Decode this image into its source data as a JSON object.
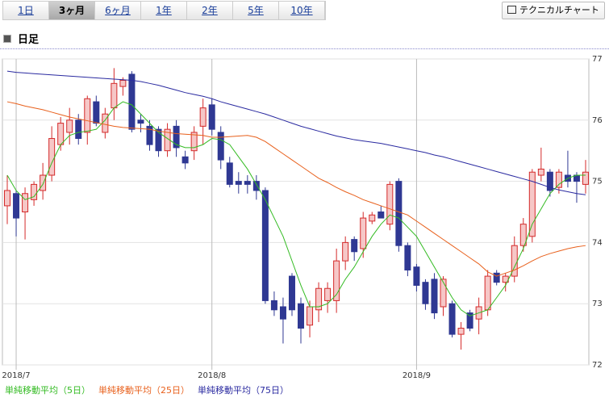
{
  "tabs": [
    "1日",
    "3ヶ月",
    "6ヶ月",
    "1年",
    "2年",
    "5年",
    "10年"
  ],
  "active_tab": 1,
  "button": "テクニカルチャート",
  "section_title": "日足",
  "chart_data": {
    "type": "candlestick",
    "categories": [
      null,
      "2018/7",
      null,
      null,
      null,
      null,
      null,
      null,
      null,
      null,
      null,
      null,
      null,
      null,
      null,
      null,
      null,
      null,
      null,
      null,
      null,
      null,
      null,
      "2018/8",
      null,
      null,
      null,
      null,
      null,
      null,
      null,
      null,
      null,
      null,
      null,
      null,
      null,
      null,
      null,
      null,
      null,
      null,
      null,
      null,
      null,
      null,
      "2018/9",
      null,
      null,
      null,
      null,
      null,
      null,
      null,
      null,
      null,
      null,
      null,
      null,
      null,
      null,
      null,
      null,
      null,
      null,
      null
    ],
    "open": [
      74.6,
      74.8,
      74.5,
      74.7,
      74.85,
      75.1,
      75.6,
      75.8,
      76.0,
      75.8,
      76.3,
      75.8,
      76.2,
      76.55,
      76.75,
      76.0,
      75.9,
      75.85,
      75.5,
      75.9,
      75.4,
      75.5,
      75.9,
      76.25,
      75.8,
      75.3,
      75.0,
      75.0,
      75.0,
      74.85,
      73.05,
      72.95,
      73.45,
      73.0,
      72.65,
      72.9,
      73.05,
      73.05,
      73.7,
      74.05,
      73.9,
      74.35,
      74.5,
      74.3,
      75.0,
      73.95,
      73.6,
      73.35,
      73.4,
      72.95,
      73.0,
      72.5,
      72.85,
      72.75,
      72.9,
      73.5,
      73.35,
      73.45,
      73.95,
      74.1,
      75.1,
      75.15,
      74.9,
      75.1,
      75.1,
      74.95
    ],
    "high": [
      75.1,
      74.85,
      74.9,
      75.0,
      75.3,
      75.9,
      76.05,
      76.2,
      76.1,
      76.4,
      76.4,
      76.2,
      76.85,
      76.7,
      76.8,
      76.1,
      76.0,
      75.9,
      75.95,
      76.0,
      75.5,
      75.9,
      76.35,
      76.35,
      75.9,
      75.4,
      75.15,
      75.1,
      75.1,
      74.9,
      73.2,
      73.1,
      73.5,
      73.1,
      73.05,
      73.35,
      73.35,
      73.9,
      74.1,
      74.1,
      74.5,
      74.5,
      74.6,
      75.0,
      75.05,
      74.0,
      73.65,
      73.4,
      73.5,
      73.45,
      73.05,
      72.7,
      72.9,
      73.1,
      73.55,
      73.55,
      73.5,
      74.1,
      74.4,
      75.2,
      75.55,
      75.2,
      75.2,
      75.5,
      75.15,
      75.35
    ],
    "low": [
      74.3,
      74.1,
      74.05,
      74.6,
      74.7,
      75.0,
      75.5,
      75.6,
      75.6,
      75.6,
      75.9,
      75.7,
      76.0,
      76.4,
      75.8,
      75.8,
      75.5,
      75.4,
      75.4,
      75.4,
      75.2,
      75.35,
      75.6,
      75.75,
      75.2,
      74.9,
      74.8,
      74.8,
      74.7,
      73.0,
      72.8,
      72.35,
      72.8,
      72.35,
      72.45,
      72.7,
      72.85,
      72.85,
      73.55,
      73.7,
      73.75,
      74.3,
      74.4,
      74.2,
      73.85,
      73.45,
      73.2,
      72.9,
      72.75,
      72.8,
      72.45,
      72.25,
      72.55,
      72.5,
      72.8,
      73.3,
      73.2,
      73.35,
      73.85,
      74.0,
      75.0,
      74.75,
      74.8,
      74.9,
      74.65,
      74.8
    ],
    "close": [
      74.85,
      74.4,
      74.8,
      74.95,
      75.1,
      75.7,
      75.95,
      76.0,
      75.7,
      76.35,
      75.95,
      76.1,
      76.6,
      76.65,
      75.85,
      75.95,
      75.6,
      75.5,
      75.85,
      75.55,
      75.3,
      75.8,
      76.2,
      75.85,
      75.35,
      74.95,
      74.95,
      74.95,
      74.85,
      73.05,
      72.9,
      72.75,
      72.9,
      72.6,
      72.95,
      73.25,
      73.25,
      73.7,
      74.0,
      73.85,
      74.4,
      74.45,
      74.4,
      74.95,
      73.95,
      73.55,
      73.3,
      73.0,
      72.85,
      73.4,
      72.5,
      72.6,
      72.6,
      72.95,
      73.45,
      73.35,
      73.45,
      73.95,
      74.3,
      75.15,
      75.2,
      74.85,
      75.15,
      75.0,
      75.0,
      75.15
    ],
    "up_color": "#d42a2a",
    "down_color": "#2f3893",
    "lines": [
      {
        "name": "単純移動平均（5日）",
        "color": "#33bb22",
        "values": [
          75.1,
          74.85,
          74.7,
          74.75,
          74.95,
          75.3,
          75.6,
          75.75,
          75.8,
          75.82,
          75.85,
          76.0,
          76.2,
          76.3,
          76.25,
          76.1,
          75.95,
          75.8,
          75.7,
          75.6,
          75.55,
          75.55,
          75.6,
          75.7,
          75.68,
          75.6,
          75.4,
          75.2,
          74.95,
          74.7,
          74.4,
          74.1,
          73.7,
          73.3,
          72.95,
          72.95,
          73.0,
          73.15,
          73.4,
          73.6,
          73.85,
          74.1,
          74.3,
          74.45,
          74.4,
          74.25,
          74.1,
          73.85,
          73.6,
          73.35,
          73.1,
          72.9,
          72.8,
          72.85,
          72.9,
          73.1,
          73.3,
          73.6,
          73.9,
          74.3,
          74.55,
          74.8,
          74.95,
          75.05,
          75.1,
          75.1
        ]
      },
      {
        "name": "単純移動平均（25日）",
        "color": "#e8601c",
        "values": [
          76.3,
          76.27,
          76.23,
          76.2,
          76.17,
          76.13,
          76.09,
          76.05,
          76.02,
          75.99,
          75.96,
          75.93,
          75.9,
          75.88,
          75.87,
          75.86,
          75.85,
          75.82,
          75.8,
          75.78,
          75.77,
          75.76,
          75.75,
          75.72,
          75.72,
          75.73,
          75.74,
          75.75,
          75.72,
          75.65,
          75.55,
          75.45,
          75.35,
          75.25,
          75.15,
          75.05,
          74.98,
          74.9,
          74.83,
          74.77,
          74.7,
          74.65,
          74.6,
          74.55,
          74.5,
          74.45,
          74.35,
          74.25,
          74.15,
          74.05,
          73.95,
          73.85,
          73.75,
          73.65,
          73.52,
          73.45,
          73.5,
          73.55,
          73.62,
          73.7,
          73.77,
          73.82,
          73.86,
          73.9,
          73.93,
          73.95
        ]
      },
      {
        "name": "単純移動平均（75日）",
        "color": "#2a2aa0",
        "values": [
          76.8,
          76.78,
          76.77,
          76.76,
          76.75,
          76.74,
          76.73,
          76.72,
          76.71,
          76.7,
          76.69,
          76.68,
          76.67,
          76.66,
          76.65,
          76.63,
          76.6,
          76.57,
          76.53,
          76.49,
          76.45,
          76.42,
          76.39,
          76.35,
          76.3,
          76.26,
          76.22,
          76.18,
          76.14,
          76.1,
          76.05,
          76.0,
          75.95,
          75.9,
          75.86,
          75.82,
          75.78,
          75.74,
          75.71,
          75.68,
          75.66,
          75.64,
          75.62,
          75.59,
          75.56,
          75.53,
          75.5,
          75.47,
          75.43,
          75.4,
          75.36,
          75.32,
          75.28,
          75.24,
          75.2,
          75.16,
          75.12,
          75.08,
          75.04,
          75.0,
          74.95,
          74.9,
          74.86,
          74.83,
          74.8,
          74.78
        ]
      }
    ],
    "ylim": [
      72,
      77
    ],
    "yticks": [
      72,
      73,
      74,
      75,
      76,
      77
    ],
    "grid": true
  }
}
